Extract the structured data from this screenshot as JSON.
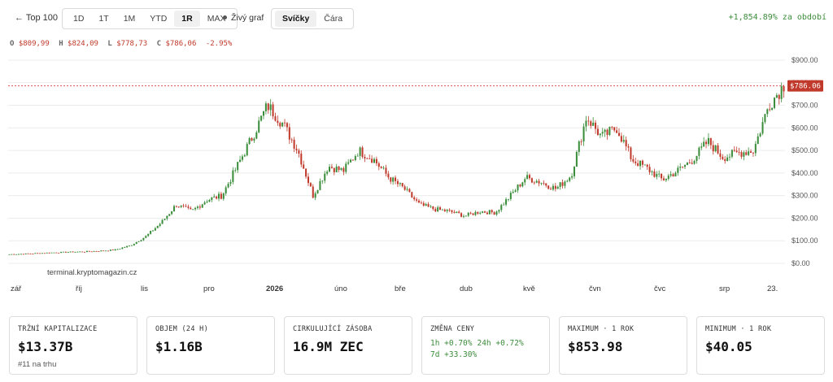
{
  "toolbar": {
    "back_label": "← Top 100",
    "ranges": [
      "1D",
      "1T",
      "1M",
      "YTD",
      "1R",
      "MAX"
    ],
    "active_range": "1R",
    "live_label": "Živý graf",
    "chart_types": [
      "Svíčky",
      "Čára"
    ],
    "active_type": "Svíčky",
    "period_change": "+1,854.89% za období"
  },
  "ohlc": {
    "o_label": "O",
    "o": "$809,99",
    "h_label": "H",
    "h": "$824,09",
    "l_label": "L",
    "l": "$778,73",
    "c_label": "C",
    "c": "$786,06",
    "change": "-2.95%"
  },
  "colors": {
    "up": "#3a8d3a",
    "down": "#c0392b",
    "price_line": "#d9534f"
  },
  "chart_data": {
    "type": "candlestick",
    "watermark": "terminal.kryptomagazin.cz",
    "current_price_label": "$786.06",
    "current_price": 786.06,
    "ylim": [
      0,
      900
    ],
    "yticks": [
      0,
      100,
      200,
      300,
      400,
      500,
      600,
      700,
      800,
      900
    ],
    "ytick_labels": [
      "$0.00",
      "$100.00",
      "$200.00",
      "$300.00",
      "$400.00",
      "$500.00",
      "$600.00",
      "$700.00",
      "$800.00",
      "$900.00"
    ],
    "xtick_labels": [
      "zář",
      "říj",
      "lis",
      "pro",
      "2026",
      "úno",
      "bře",
      "dub",
      "kvě",
      "čvn",
      "čvc",
      "srp",
      "23."
    ],
    "closes": [
      40,
      42,
      45,
      48,
      50,
      52,
      55,
      60,
      80,
      120,
      180,
      260,
      230,
      280,
      300,
      430,
      560,
      700,
      620,
      500,
      300,
      430,
      410,
      500,
      460,
      380,
      330,
      260,
      240,
      230,
      210,
      230,
      225,
      300,
      380,
      360,
      330,
      390,
      650,
      560,
      600,
      460,
      420,
      370,
      410,
      460,
      540,
      470,
      490,
      500,
      700,
      790
    ]
  },
  "stats": [
    {
      "title": "TRŽNÍ KAPITALIZACE",
      "value": "$13.37B",
      "sub": "#11 na trhu"
    },
    {
      "title": "OBJEM (24 H)",
      "value": "$1.16B"
    },
    {
      "title": "CIRKULUJÍCÍ ZÁSOBA",
      "value": "16.9M ZEC"
    },
    {
      "title": "ZMĚNA CENY",
      "changes": [
        "1h +0.70%",
        "24h +0.72%",
        "7d +33.30%"
      ]
    },
    {
      "title": "MAXIMUM · 1 ROK",
      "value": "$853.98"
    },
    {
      "title": "MINIMUM · 1 ROK",
      "value": "$40.05"
    }
  ]
}
